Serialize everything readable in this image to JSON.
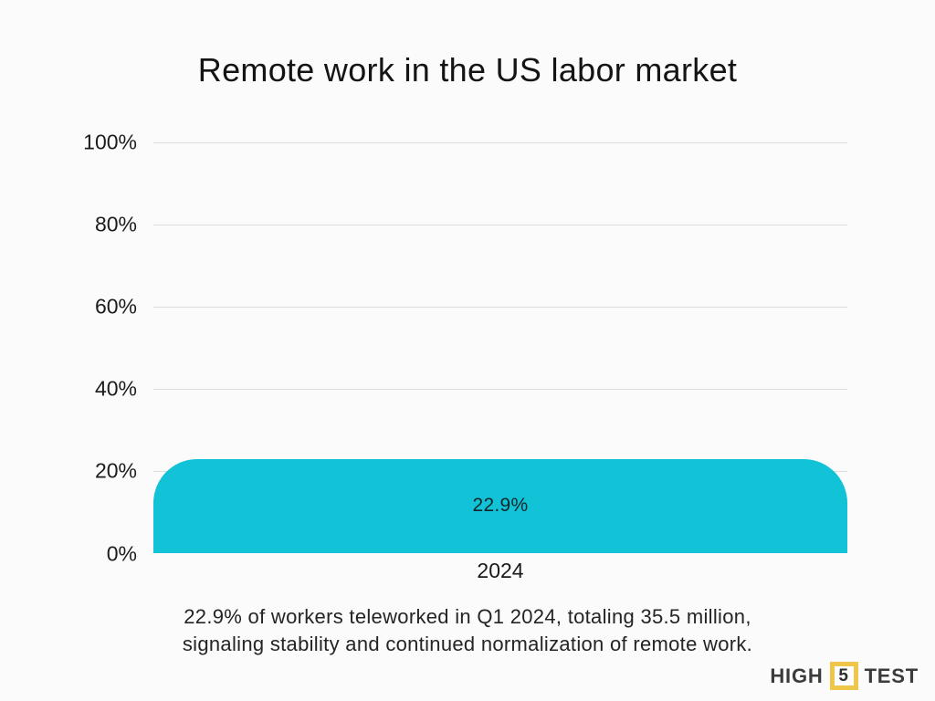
{
  "title": "Remote work in the US labor market",
  "chart_data": {
    "type": "bar",
    "categories": [
      "2024"
    ],
    "values": [
      22.9
    ],
    "bar_labels": [
      "22.9%"
    ],
    "title": "Remote work in the US labor market",
    "xlabel": "",
    "ylabel": "",
    "ylim": [
      0,
      100
    ],
    "ytick_labels": [
      "100%",
      "80%",
      "60%",
      "40%",
      "20%",
      "0%"
    ],
    "grid": true,
    "legend": false,
    "colors": {
      "bar": "#12C2D6",
      "gridline": "#DCDCDC",
      "background": "#FBFBFB",
      "bar_label_text": "#12262B"
    }
  },
  "caption": {
    "line1": "22.9% of workers teleworked in Q1 2024, totaling 35.5 million,",
    "line2": "signaling stability and continued normalization of remote work."
  },
  "logo": {
    "part1": "HIGH",
    "number": "5",
    "part2": "TEST",
    "accent_color": "#F0C64A"
  }
}
